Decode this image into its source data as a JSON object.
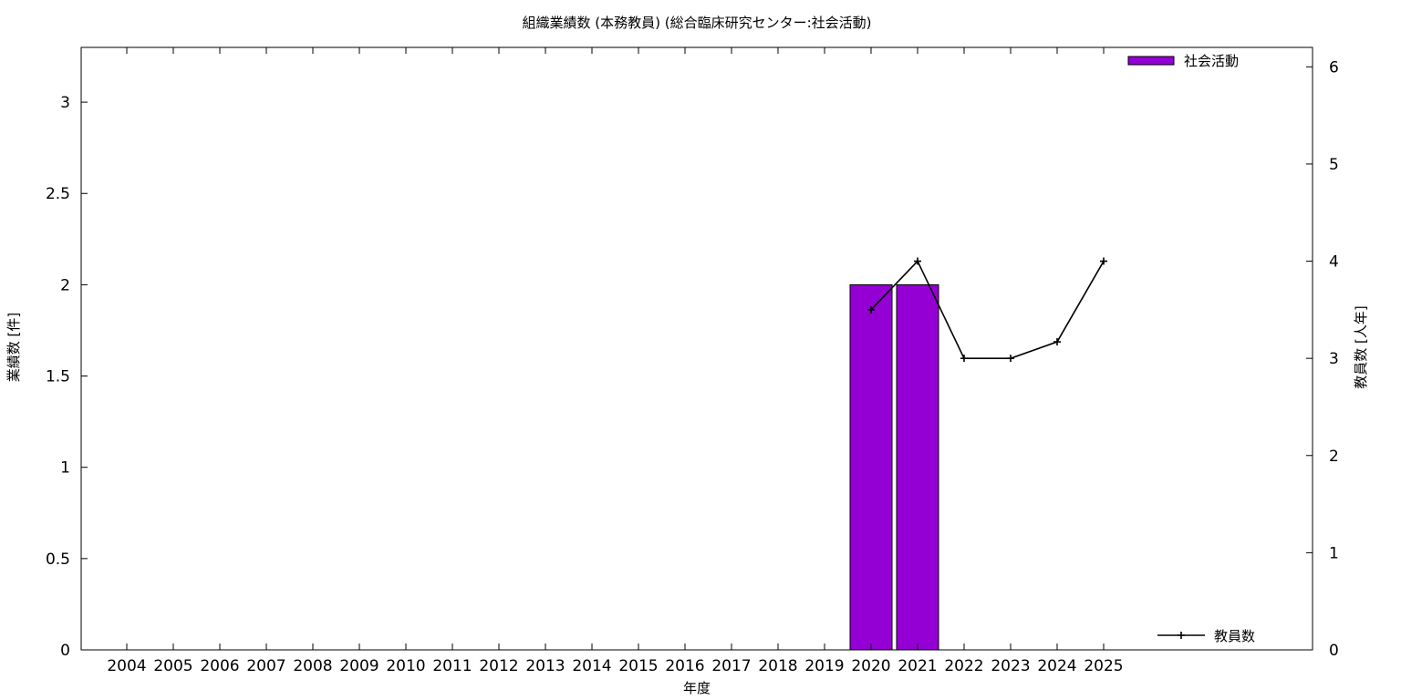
{
  "chart_data": {
    "type": "bar",
    "title": "組織業績数 (本務教員) (総合臨床研究センター:社会活動)",
    "xlabel": "年度",
    "ylabel": "業績数 [件]",
    "y2label": "教員数 [人年]",
    "categories": [
      "2004",
      "2005",
      "2006",
      "2007",
      "2008",
      "2009",
      "2010",
      "2011",
      "2012",
      "2013",
      "2014",
      "2015",
      "2016",
      "2017",
      "2018",
      "2019",
      "2020",
      "2021",
      "2022",
      "2023",
      "2024",
      "2025"
    ],
    "ylim": [
      0,
      3.3
    ],
    "y_ticks": [
      0,
      0.5,
      1,
      1.5,
      2,
      2.5,
      3
    ],
    "y_tick_labels": [
      "0",
      "0.5",
      "1",
      "1.5",
      "2",
      "2.5",
      "3"
    ],
    "y2lim": [
      0,
      6.2
    ],
    "y2_ticks": [
      0,
      1,
      2,
      3,
      4,
      5,
      6
    ],
    "y2_tick_labels": [
      "0",
      "1",
      "2",
      "3",
      "4",
      "5",
      "6"
    ],
    "series": [
      {
        "name": "社会活動",
        "kind": "bar",
        "axis": "left",
        "color": "#9400d3",
        "values": [
          0,
          0,
          0,
          0,
          0,
          0,
          0,
          0,
          0,
          0,
          0,
          0,
          0,
          0,
          0,
          0,
          2,
          2,
          0,
          0,
          0,
          0
        ]
      },
      {
        "name": "教員数",
        "kind": "line",
        "axis": "right",
        "color": "#000000",
        "marker": "plus",
        "points": [
          {
            "x": "2020",
            "y": 3.5
          },
          {
            "x": "2021",
            "y": 4.0
          },
          {
            "x": "2022",
            "y": 3.0
          },
          {
            "x": "2023",
            "y": 3.0
          },
          {
            "x": "2024",
            "y": 3.17
          },
          {
            "x": "2025",
            "y": 4.0
          }
        ]
      }
    ],
    "legend": [
      "top-right",
      "bottom-right"
    ],
    "grid": false
  }
}
